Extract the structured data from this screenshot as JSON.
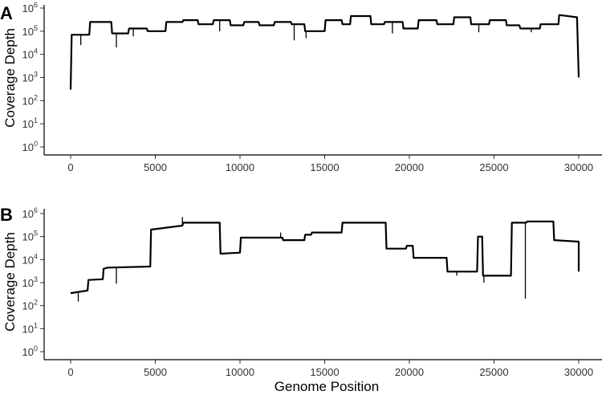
{
  "figure": {
    "x_axis_title": "Genome Position",
    "y_axis_title": "Coverage Depth"
  },
  "chart_data": [
    {
      "type": "line",
      "panel_label": "A",
      "xlabel": "",
      "ylabel": "Coverage Depth",
      "y_scale": "log10",
      "xlim": [
        0,
        30300
      ],
      "ylim": [
        1,
        1000000
      ],
      "x_ticks": [
        0,
        5000,
        10000,
        15000,
        20000,
        25000,
        30000
      ],
      "y_ticks": [
        {
          "base": "10",
          "exp": "0"
        },
        {
          "base": "10",
          "exp": "1"
        },
        {
          "base": "10",
          "exp": "2"
        },
        {
          "base": "10",
          "exp": "3"
        },
        {
          "base": "10",
          "exp": "4"
        },
        {
          "base": "10",
          "exp": "5"
        },
        {
          "base": "10",
          "exp": "6"
        }
      ],
      "grid": false,
      "series": [
        {
          "x": [
            0,
            60,
            1100,
            1150,
            2400,
            2450,
            3400,
            3450,
            4500,
            4550,
            5600,
            5650,
            6600,
            6650,
            7500,
            7550,
            8400,
            8450,
            9400,
            9450,
            10200,
            10250,
            11100,
            11150,
            12000,
            12050,
            13000,
            13050,
            13800,
            13850,
            15000,
            15050,
            16000,
            16050,
            16500,
            16550,
            17700,
            17750,
            18500,
            18550,
            19600,
            19650,
            20500,
            20550,
            21600,
            21650,
            22600,
            22650,
            23600,
            23650,
            24700,
            24750,
            25700,
            25750,
            26500,
            26550,
            27700,
            27750,
            28800,
            28850,
            29900,
            30000
          ],
          "y": [
            300,
            70000,
            70000,
            250000,
            250000,
            80000,
            80000,
            130000,
            130000,
            100000,
            100000,
            250000,
            250000,
            300000,
            300000,
            200000,
            200000,
            300000,
            300000,
            180000,
            180000,
            250000,
            250000,
            180000,
            180000,
            250000,
            250000,
            200000,
            200000,
            100000,
            100000,
            300000,
            300000,
            200000,
            200000,
            450000,
            450000,
            200000,
            200000,
            250000,
            250000,
            130000,
            130000,
            300000,
            300000,
            200000,
            200000,
            400000,
            400000,
            200000,
            200000,
            300000,
            300000,
            180000,
            180000,
            130000,
            130000,
            200000,
            200000,
            500000,
            400000,
            1000
          ]
        }
      ],
      "dips": [
        {
          "x": 600,
          "y": 25000
        },
        {
          "x": 2700,
          "y": 20000
        },
        {
          "x": 3700,
          "y": 60000
        },
        {
          "x": 8800,
          "y": 100000
        },
        {
          "x": 13200,
          "y": 40000
        },
        {
          "x": 13900,
          "y": 50000
        },
        {
          "x": 19000,
          "y": 80000
        },
        {
          "x": 24100,
          "y": 90000
        },
        {
          "x": 27200,
          "y": 90000
        }
      ]
    },
    {
      "type": "line",
      "panel_label": "B",
      "xlabel": "Genome Position",
      "ylabel": "Coverage Depth",
      "y_scale": "log10",
      "xlim": [
        0,
        30300
      ],
      "ylim": [
        1,
        1000000
      ],
      "x_ticks": [
        0,
        5000,
        10000,
        15000,
        20000,
        25000,
        30000
      ],
      "y_ticks": [
        {
          "base": "10",
          "exp": "0"
        },
        {
          "base": "10",
          "exp": "1"
        },
        {
          "base": "10",
          "exp": "2"
        },
        {
          "base": "10",
          "exp": "3"
        },
        {
          "base": "10",
          "exp": "4"
        },
        {
          "base": "10",
          "exp": "5"
        },
        {
          "base": "10",
          "exp": "6"
        }
      ],
      "grid": false,
      "series": [
        {
          "x": [
            0,
            1000,
            1050,
            1900,
            1950,
            2200,
            2250,
            4700,
            4750,
            6600,
            6650,
            8800,
            8850,
            10000,
            10050,
            12500,
            12550,
            13800,
            13850,
            14200,
            14250,
            16000,
            16050,
            18600,
            18650,
            19800,
            19850,
            20200,
            20250,
            22200,
            22250,
            24000,
            24050,
            24300,
            24350,
            26000,
            26050,
            26900,
            26950,
            28500,
            28550,
            30000,
            30000
          ],
          "y": [
            350,
            450,
            1300,
            1400,
            4000,
            4500,
            4500,
            5000,
            200000,
            300000,
            400000,
            400000,
            18000,
            20000,
            90000,
            90000,
            70000,
            70000,
            120000,
            120000,
            150000,
            150000,
            400000,
            400000,
            30000,
            30000,
            40000,
            40000,
            12000,
            12000,
            3000,
            3000,
            100000,
            100000,
            2000,
            2000,
            400000,
            400000,
            450000,
            450000,
            70000,
            60000,
            3000
          ]
        }
      ],
      "dips": [
        {
          "x": 450,
          "y": 150
        },
        {
          "x": 2700,
          "y": 900
        },
        {
          "x": 6600,
          "y": 700000
        },
        {
          "x": 26850,
          "y": 200
        },
        {
          "x": 24400,
          "y": 1000
        },
        {
          "x": 22800,
          "y": 2000
        },
        {
          "x": 12400,
          "y": 150000
        }
      ]
    }
  ]
}
